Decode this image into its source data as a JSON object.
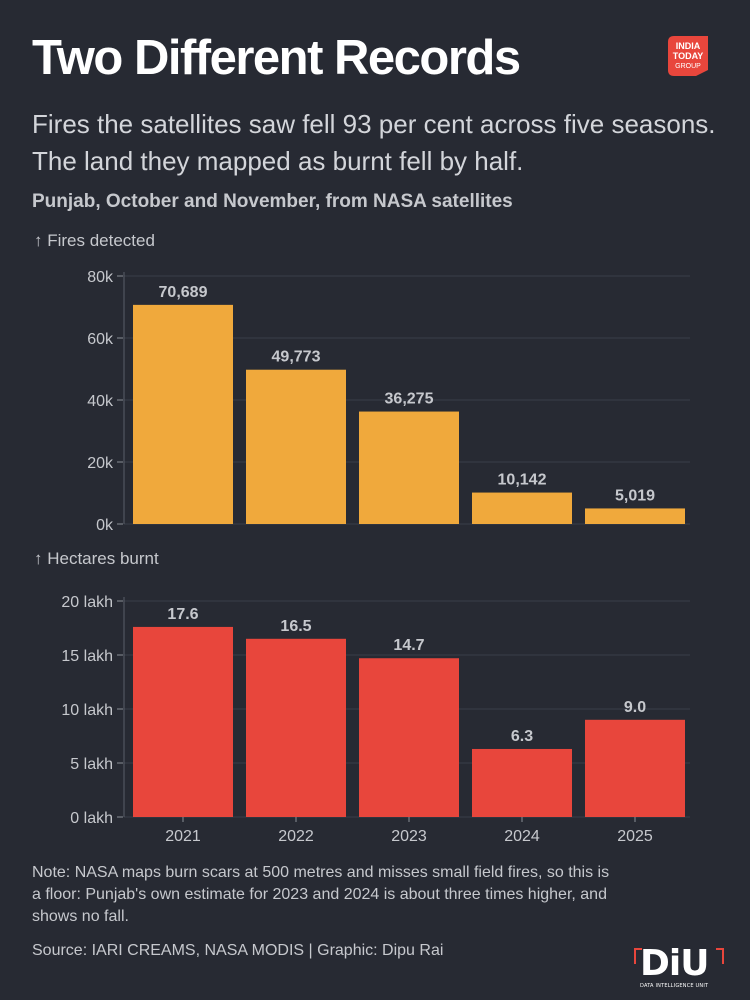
{
  "header": {
    "title": "Two Different Records",
    "subtitle": "Fires the satellites saw fell 93 per cent across five seasons. The land they mapped as burnt fell by half.",
    "context": "Punjab, October and November, from NASA satellites"
  },
  "brand": {
    "logo_lines": [
      "INDIA",
      "TODAY",
      "GROUP"
    ],
    "logo_color": "#e8463c",
    "unit_mark": "DiU",
    "unit_name": "DATA INTELLIGENCE UNIT"
  },
  "footer": {
    "note": "Note: NASA maps burn scars at 500 metres and misses small field fires, so this is a floor: Punjab's own estimate for 2023 and 2024 is about three times higher, and shows no fall.",
    "source": "Source: IARI CREAMS, NASA MODIS | Graphic: Dipu Rai"
  },
  "colors": {
    "background": "#272a33",
    "fires": "#f0a93c",
    "hectares": "#e8463c",
    "text": "#c6c8cd"
  },
  "chart_data": [
    {
      "type": "bar",
      "ylabel": "↑ Fires detected",
      "categories": [
        "2021",
        "2022",
        "2023",
        "2024",
        "2025"
      ],
      "values": [
        70689,
        49773,
        36275,
        10142,
        5019
      ],
      "value_labels": [
        "70,689",
        "49,773",
        "36,275",
        "10,142",
        "5,019"
      ],
      "ylim": [
        0,
        80000
      ],
      "yticks": [
        0,
        20000,
        40000,
        60000,
        80000
      ],
      "ytick_labels": [
        "0k",
        "20k",
        "40k",
        "60k",
        "80k"
      ],
      "color": "#f0a93c",
      "grid": true
    },
    {
      "type": "bar",
      "ylabel": "↑ Hectares burnt",
      "categories": [
        "2021",
        "2022",
        "2023",
        "2024",
        "2025"
      ],
      "values": [
        17.6,
        16.5,
        14.7,
        6.3,
        9.0
      ],
      "value_labels": [
        "17.6",
        "16.5",
        "14.7",
        "6.3",
        "9.0"
      ],
      "ylim": [
        0,
        20
      ],
      "yticks": [
        0,
        5,
        10,
        15,
        20
      ],
      "ytick_labels": [
        "0 lakh",
        "5 lakh",
        "10 lakh",
        "15 lakh",
        "20 lakh"
      ],
      "color": "#e8463c",
      "grid": true
    }
  ]
}
